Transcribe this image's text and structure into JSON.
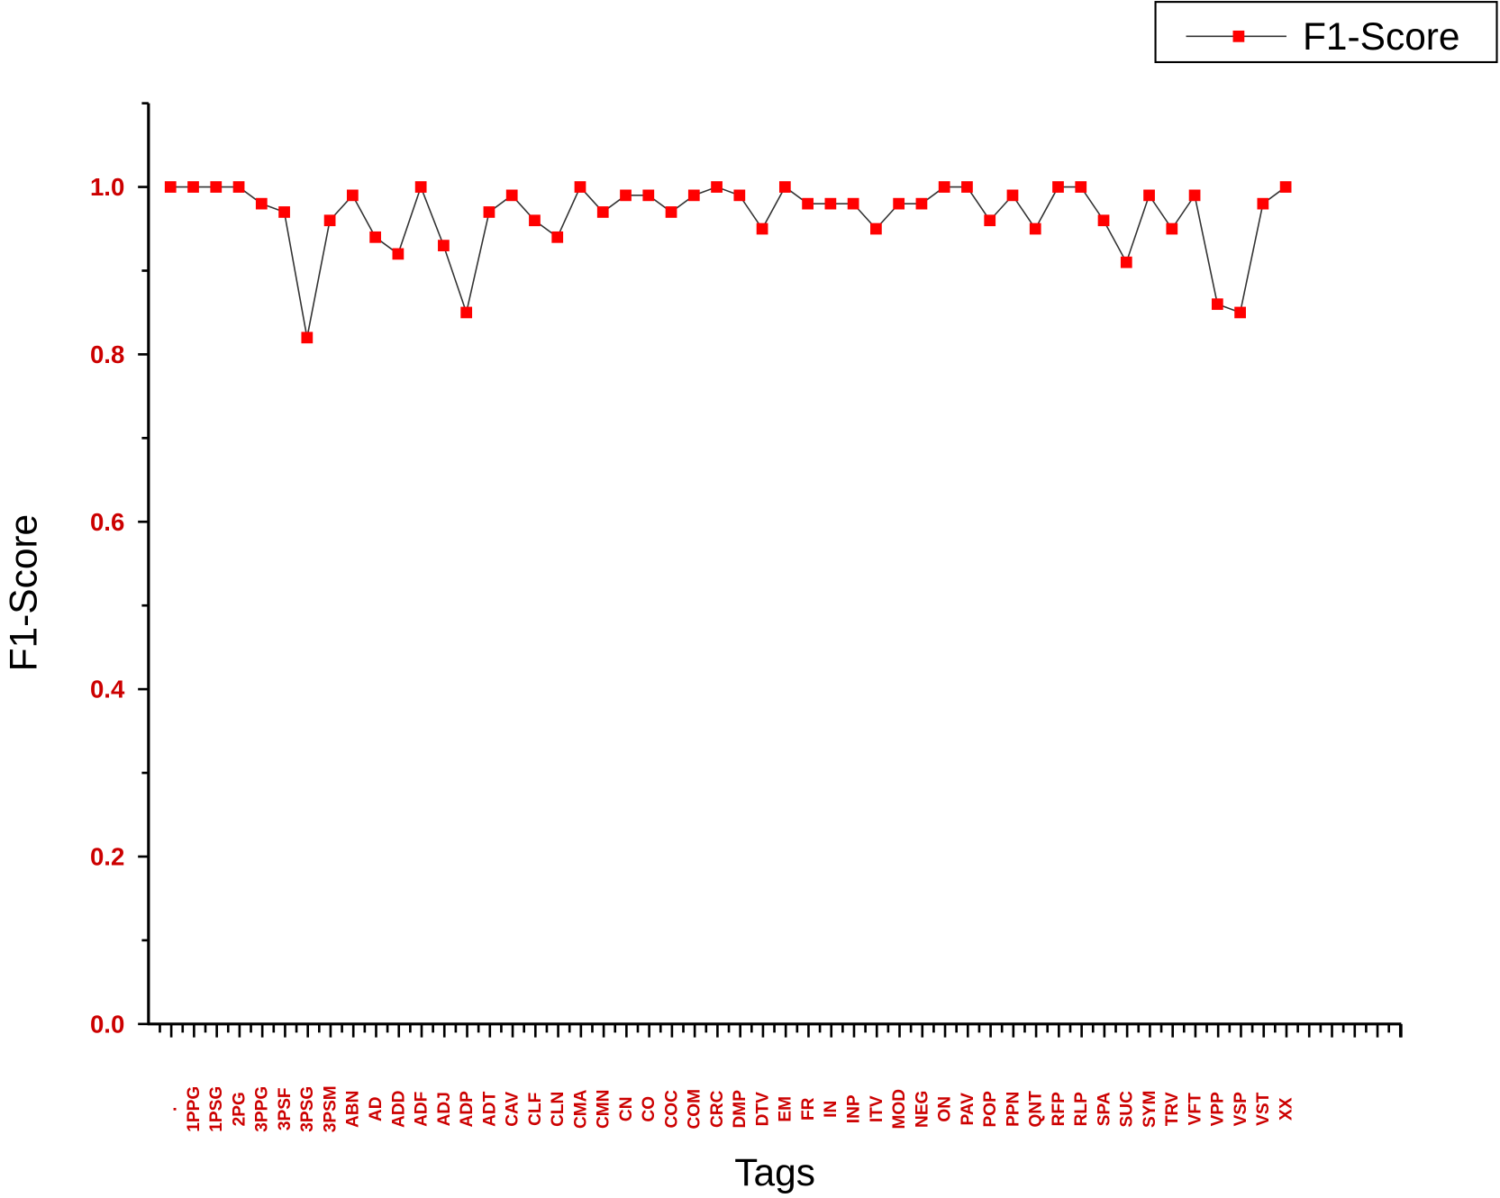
{
  "chart_data": {
    "type": "line",
    "title": "",
    "xlabel": "Tags",
    "ylabel": "F1-Score",
    "ylim": [
      0,
      1.1
    ],
    "yticks": [
      "0.0",
      "0.2",
      "0.4",
      "0.6",
      "0.8",
      "1.0"
    ],
    "grid": false,
    "legend_position": "top-right",
    "colors": {
      "marker": "#ff0000",
      "line": "#333333",
      "tick_label": "#cc0000"
    },
    "categories": [
      ".",
      "1PPG",
      "1PSG",
      "2PG",
      "3PPG",
      "3PSF",
      "3PSG",
      "3PSM",
      "ABN",
      "AD",
      "ADD",
      "ADF",
      "ADJ",
      "ADP",
      "ADT",
      "CAV",
      "CLF",
      "CLN",
      "CMA",
      "CMN",
      "CN",
      "CO",
      "COC",
      "COM",
      "CRC",
      "DMP",
      "DTV",
      "EM",
      "FR",
      "IN",
      "INP",
      "ITV",
      "MOD",
      "NEG",
      "ON",
      "PAV",
      "POP",
      "PPN",
      "QNT",
      "RFP",
      "RLP",
      "SPA",
      "SUC",
      "SYM",
      "TRV",
      "VFT",
      "VPP",
      "VSP",
      "VST",
      "XX"
    ],
    "series": [
      {
        "name": "F1-Score",
        "values": [
          1.0,
          1.0,
          1.0,
          1.0,
          0.98,
          0.97,
          0.82,
          0.96,
          0.99,
          0.94,
          0.92,
          1.0,
          0.93,
          0.85,
          0.97,
          0.99,
          0.96,
          0.94,
          1.0,
          0.97,
          0.99,
          0.99,
          0.97,
          0.99,
          1.0,
          0.99,
          0.95,
          1.0,
          0.98,
          0.98,
          0.98,
          0.95,
          0.98,
          0.98,
          1.0,
          1.0,
          0.96,
          0.99,
          0.95,
          1.0,
          1.0,
          0.96,
          0.91,
          0.99,
          0.95,
          0.99,
          0.86,
          0.85,
          0.98,
          1.0
        ]
      }
    ]
  }
}
